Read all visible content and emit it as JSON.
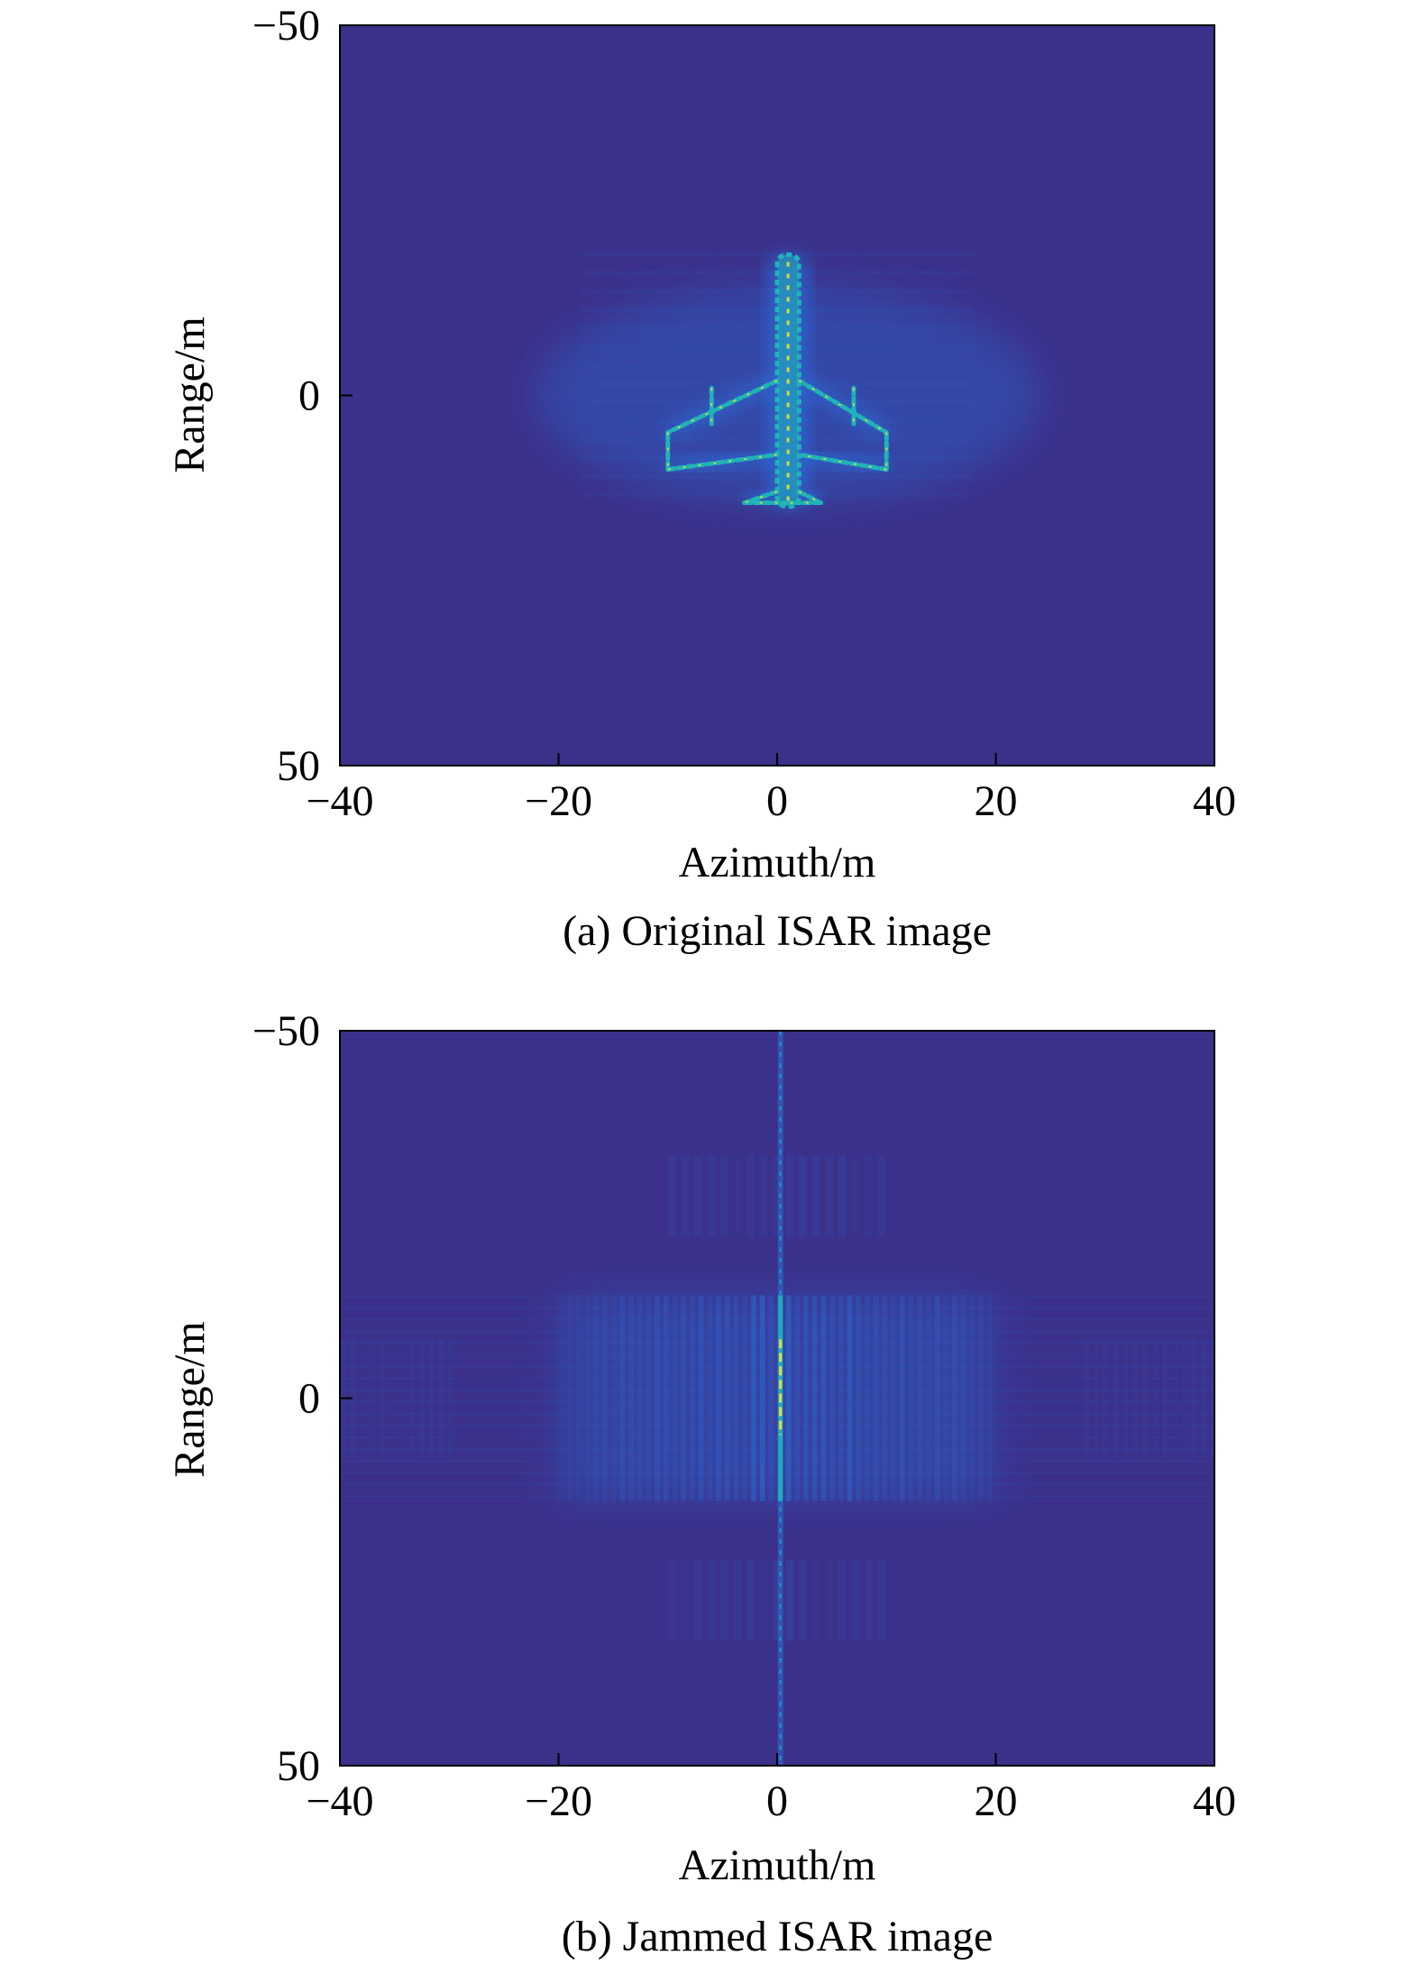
{
  "chart_data": [
    {
      "type": "heatmap",
      "caption": "(a) Original ISAR image",
      "xlabel": "Azimuth/m",
      "ylabel": "Range/m",
      "xlim": [
        -40,
        40
      ],
      "ylim": [
        -50,
        50
      ],
      "y_axis_reversed": true,
      "xticks": [
        -40,
        -20,
        0,
        20,
        40
      ],
      "yticks": [
        -50,
        0,
        50
      ],
      "xtick_labels": [
        "−40",
        "−20",
        "0",
        "20",
        "40"
      ],
      "ytick_labels": [
        "−50",
        "0",
        "50"
      ],
      "grid": false,
      "colors": {
        "background": "#3b318a",
        "low": "#2a6fdb",
        "mid": "#1fb3b8",
        "high": "#e6e23a"
      },
      "scatterers": {
        "fuselage": {
          "azimuth": [
            0,
            2
          ],
          "range": [
            -19,
            15
          ]
        },
        "wings": [
          {
            "from": [
              0,
              -2
            ],
            "to": [
              -10,
              5
            ]
          },
          {
            "from": [
              2,
              -2
            ],
            "to": [
              10,
              5
            ]
          },
          {
            "from": [
              -10,
              5
            ],
            "to": [
              -10,
              10
            ]
          },
          {
            "from": [
              10,
              5
            ],
            "to": [
              10,
              10
            ]
          },
          {
            "from": [
              -10,
              10
            ],
            "to": [
              0,
              8
            ]
          },
          {
            "from": [
              10,
              10
            ],
            "to": [
              2,
              8
            ]
          }
        ],
        "tail": [
          {
            "from": [
              -3,
              14.5
            ],
            "to": [
              4,
              14.5
            ]
          },
          {
            "from": [
              0,
              13
            ],
            "to": [
              -3,
              14.5
            ]
          },
          {
            "from": [
              2,
              13
            ],
            "to": [
              4,
              14.5
            ]
          }
        ],
        "engines": [
          {
            "from": [
              -6,
              -1
            ],
            "to": [
              -6,
              4
            ]
          },
          {
            "from": [
              7,
              -1
            ],
            "to": [
              7,
              4
            ]
          }
        ]
      }
    },
    {
      "type": "heatmap",
      "caption": "(b) Jammed ISAR image",
      "xlabel": "Azimuth/m",
      "ylabel": "Range/m",
      "xlim": [
        -40,
        40
      ],
      "ylim": [
        -50,
        50
      ],
      "y_axis_reversed": true,
      "xticks": [
        -40,
        -20,
        0,
        20,
        40
      ],
      "yticks": [
        -50,
        0,
        50
      ],
      "xtick_labels": [
        "−40",
        "−20",
        "0",
        "20",
        "40"
      ],
      "ytick_labels": [
        "−50",
        "0",
        "50"
      ],
      "grid": false,
      "colors": {
        "background": "#3b318a",
        "low": "#2a6fdb",
        "mid": "#1fb3b8",
        "high": "#e6e23a"
      },
      "jamming": {
        "main_line_azimuth": 0.3,
        "bright_range": [
          -8,
          5
        ],
        "band_range": [
          -14,
          14
        ],
        "band_azimuth_inner": [
          -20,
          20
        ],
        "band_azimuth_outer_left": [
          -40,
          -30
        ],
        "band_azimuth_outer_right": [
          28,
          40
        ]
      }
    }
  ]
}
